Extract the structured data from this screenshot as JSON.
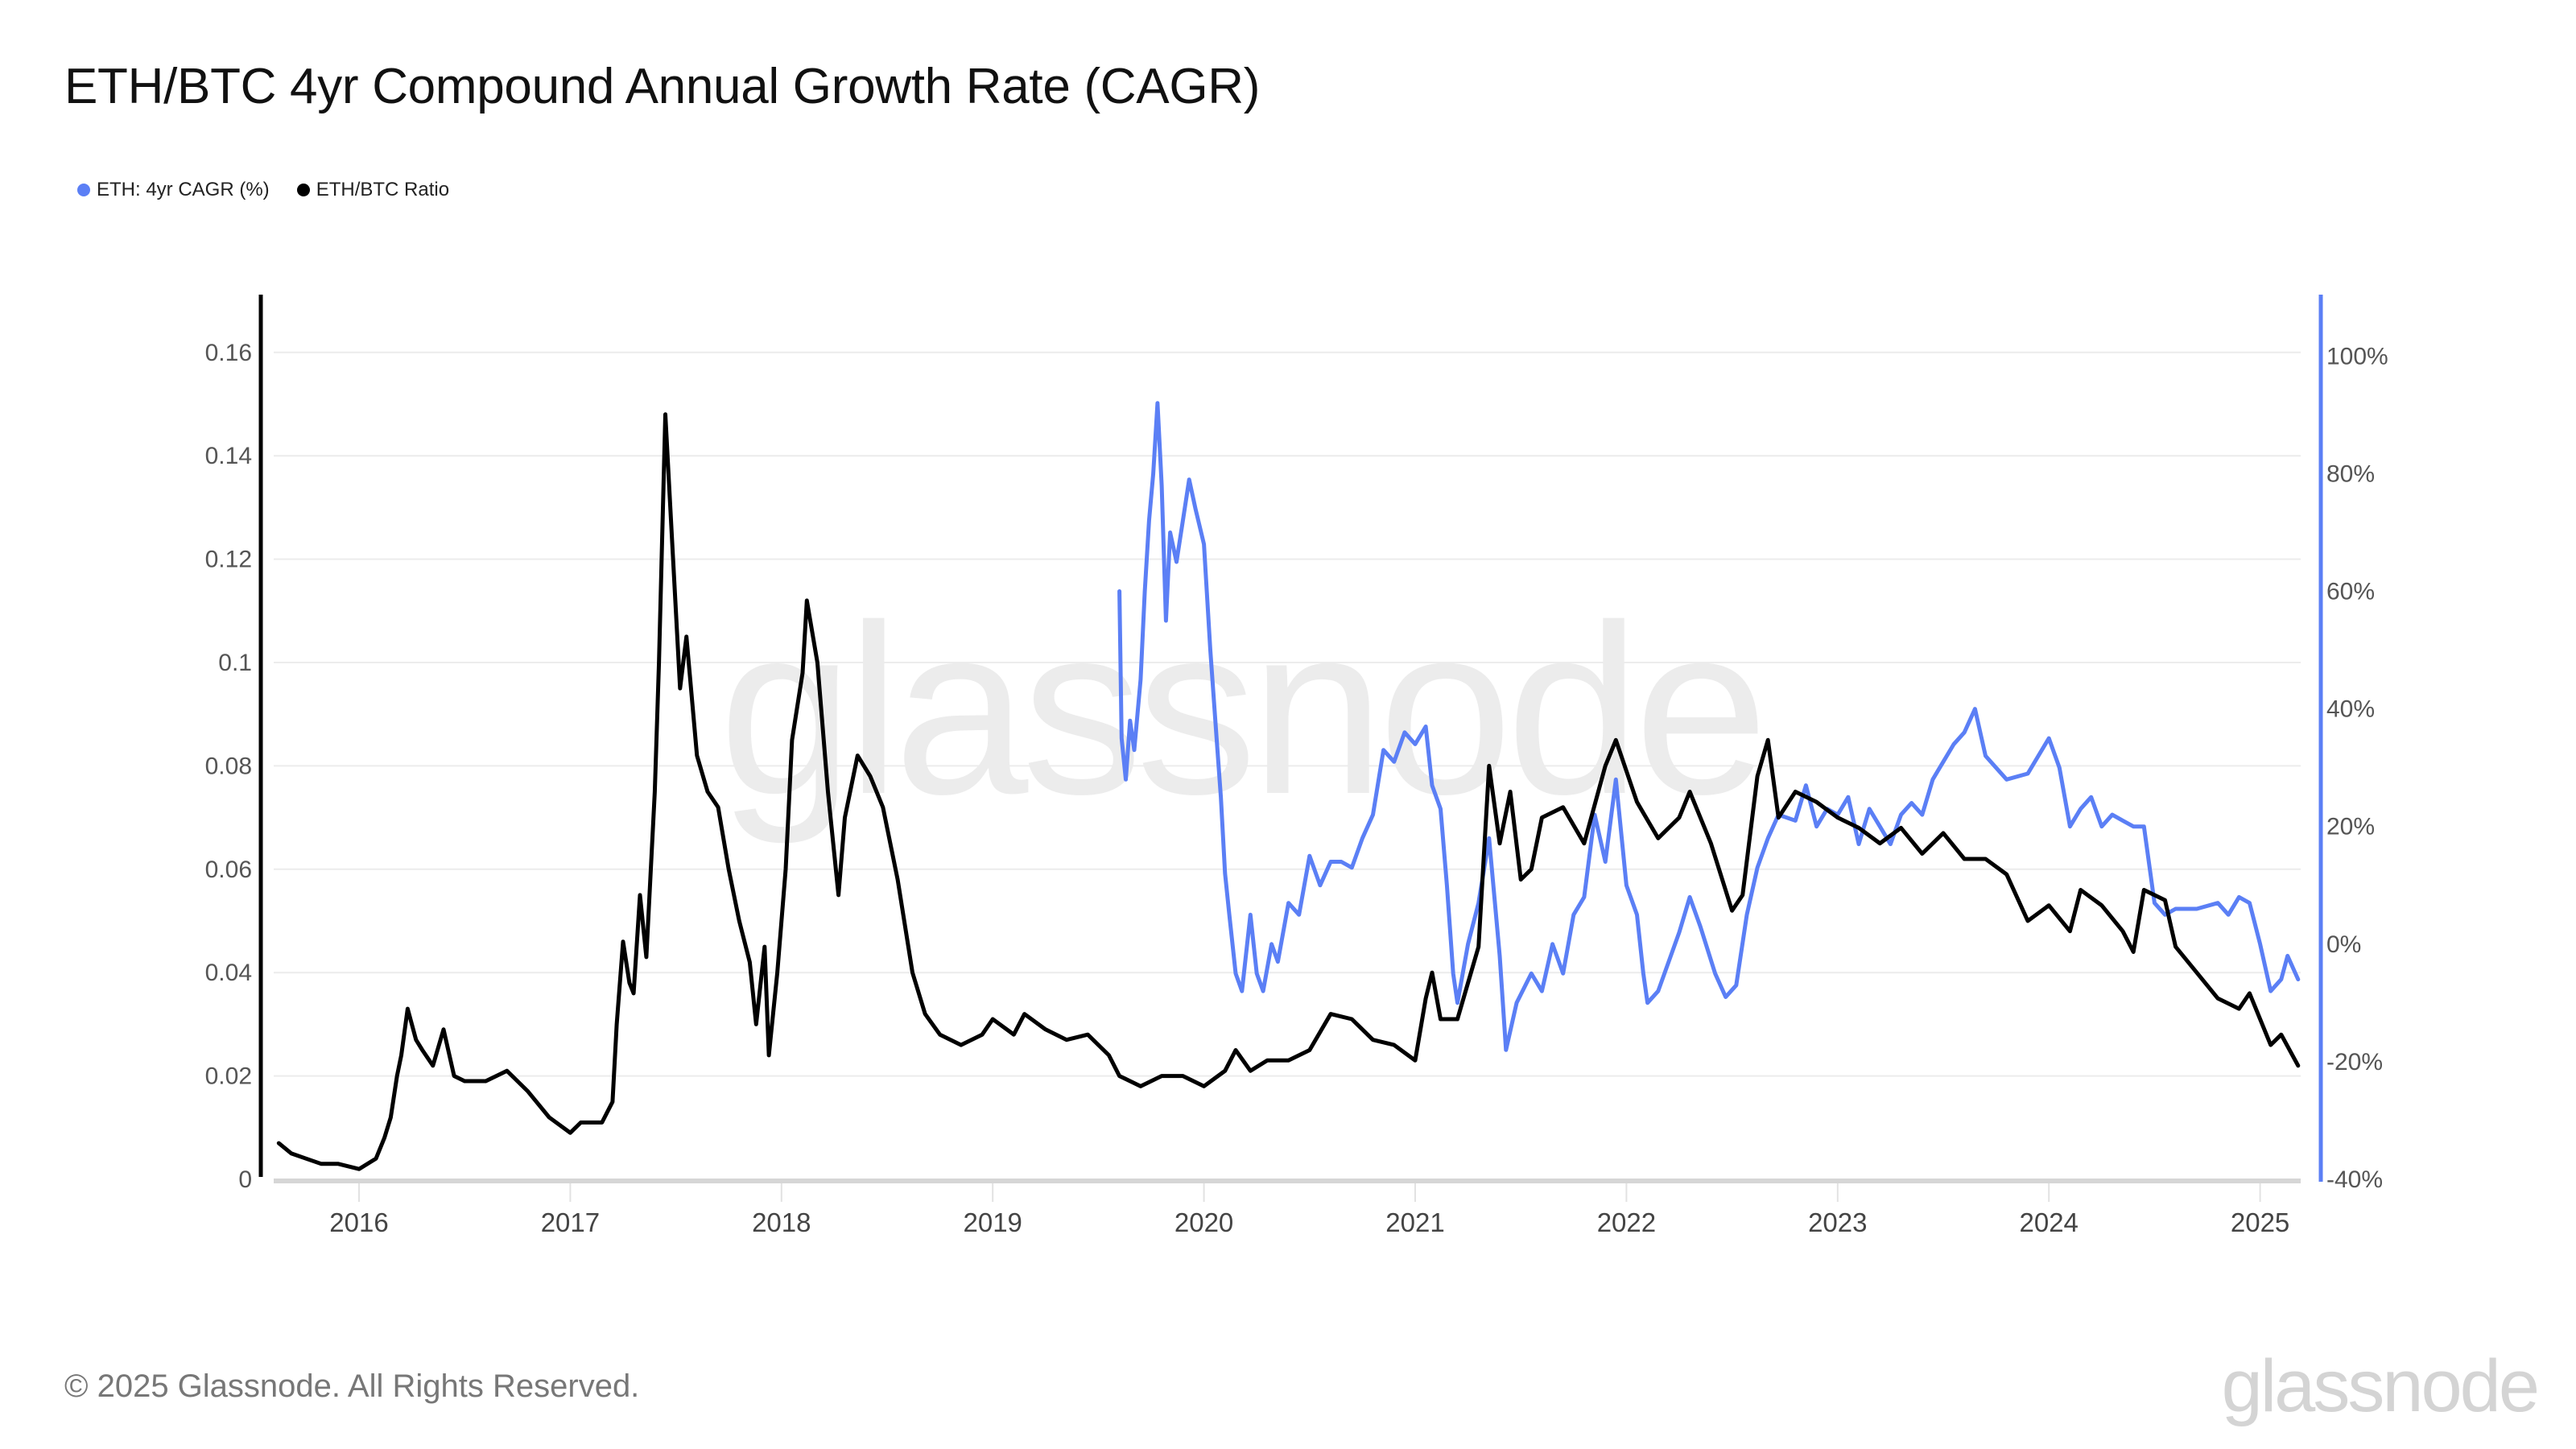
{
  "title": "ETH/BTC 4yr Compound Annual Growth Rate (CAGR)",
  "footer": {
    "copyright": "© 2025 Glassnode. All Rights Reserved.",
    "brand": "glassnode"
  },
  "watermark": "glassnode",
  "chart_data": {
    "type": "line",
    "title": "ETH/BTC 4yr Compound Annual Growth Rate (CAGR)",
    "xlabel": "",
    "ylabel_left": "",
    "ylabel_right": "",
    "x_ticks": [
      "2016",
      "2017",
      "2018",
      "2019",
      "2020",
      "2021",
      "2022",
      "2023",
      "2024",
      "2025"
    ],
    "x_range": [
      2015.6,
      2025.2
    ],
    "y_left": {
      "range": [
        0,
        0.17
      ],
      "ticks": [
        "0",
        "0.02",
        "0.04",
        "0.06",
        "0.08",
        "0.1",
        "0.12",
        "0.14",
        "0.16"
      ],
      "tick_values": [
        0,
        0.02,
        0.04,
        0.06,
        0.08,
        0.1,
        0.12,
        0.14,
        0.16
      ],
      "color": "#000000"
    },
    "y_right": {
      "range": [
        -40,
        110
      ],
      "ticks": [
        "-40%",
        "-20%",
        "0%",
        "20%",
        "40%",
        "60%",
        "80%",
        "100%"
      ],
      "tick_values": [
        -40,
        -20,
        0,
        20,
        40,
        60,
        80,
        100
      ],
      "color": "#5b7ff5"
    },
    "grid": true,
    "legend_placement": "top-left",
    "series": [
      {
        "name": "ETH: 4yr CAGR (%)",
        "axis": "right",
        "color": "#5b7ff5",
        "x": [
          2019.6,
          2019.61,
          2019.63,
          2019.65,
          2019.67,
          2019.7,
          2019.72,
          2019.74,
          2019.76,
          2019.78,
          2019.8,
          2019.82,
          2019.84,
          2019.87,
          2019.9,
          2019.93,
          2019.96,
          2020.0,
          2020.03,
          2020.06,
          2020.08,
          2020.1,
          2020.12,
          2020.15,
          2020.18,
          2020.22,
          2020.25,
          2020.28,
          2020.32,
          2020.35,
          2020.4,
          2020.45,
          2020.5,
          2020.55,
          2020.6,
          2020.65,
          2020.7,
          2020.75,
          2020.8,
          2020.85,
          2020.9,
          2020.95,
          2021.0,
          2021.05,
          2021.08,
          2021.12,
          2021.15,
          2021.18,
          2021.2,
          2021.25,
          2021.3,
          2021.35,
          2021.4,
          2021.43,
          2021.48,
          2021.55,
          2021.6,
          2021.65,
          2021.7,
          2021.75,
          2021.8,
          2021.85,
          2021.9,
          2021.95,
          2022.0,
          2022.05,
          2022.08,
          2022.1,
          2022.15,
          2022.2,
          2022.25,
          2022.3,
          2022.35,
          2022.42,
          2022.47,
          2022.52,
          2022.57,
          2022.62,
          2022.67,
          2022.72,
          2022.8,
          2022.85,
          2022.9,
          2022.95,
          2023.0,
          2023.05,
          2023.1,
          2023.15,
          2023.2,
          2023.25,
          2023.3,
          2023.35,
          2023.4,
          2023.45,
          2023.5,
          2023.55,
          2023.6,
          2023.65,
          2023.7,
          2023.75,
          2023.8,
          2023.9,
          2023.95,
          2024.0,
          2024.05,
          2024.1,
          2024.15,
          2024.2,
          2024.25,
          2024.3,
          2024.35,
          2024.4,
          2024.45,
          2024.5,
          2024.55,
          2024.6,
          2024.7,
          2024.8,
          2024.85,
          2024.9,
          2024.95,
          2025.0,
          2025.05,
          2025.1,
          2025.13,
          2025.18
        ],
        "values": [
          60,
          35,
          28,
          38,
          33,
          45,
          60,
          72,
          80,
          92,
          78,
          55,
          70,
          65,
          72,
          79,
          74,
          68,
          50,
          35,
          25,
          12,
          5,
          -5,
          -8,
          5,
          -5,
          -8,
          0,
          -3,
          7,
          5,
          15,
          10,
          14,
          14,
          13,
          18,
          22,
          33,
          31,
          36,
          34,
          37,
          27,
          23,
          10,
          -5,
          -10,
          0,
          7,
          18,
          -2,
          -18,
          -10,
          -5,
          -8,
          0,
          -5,
          5,
          8,
          22,
          14,
          28,
          10,
          5,
          -5,
          -10,
          -8,
          -3,
          2,
          8,
          3,
          -5,
          -9,
          -7,
          5,
          13,
          18,
          22,
          21,
          27,
          20,
          23,
          22,
          25,
          17,
          23,
          20,
          17,
          22,
          24,
          22,
          28,
          31,
          34,
          36,
          40,
          32,
          30,
          28,
          29,
          32,
          35,
          30,
          20,
          23,
          25,
          20,
          22,
          21,
          20,
          20,
          7,
          5,
          6,
          6,
          7,
          5,
          8,
          7,
          0,
          -8,
          -6,
          -2,
          -6
        ]
      },
      {
        "name": "ETH/BTC Ratio",
        "axis": "left",
        "color": "#000000",
        "x": [
          2015.62,
          2015.68,
          2015.75,
          2015.82,
          2015.9,
          2016.0,
          2016.08,
          2016.12,
          2016.15,
          2016.18,
          2016.2,
          2016.23,
          2016.27,
          2016.3,
          2016.35,
          2016.4,
          2016.45,
          2016.5,
          2016.6,
          2016.7,
          2016.8,
          2016.9,
          2017.0,
          2017.05,
          2017.15,
          2017.2,
          2017.22,
          2017.25,
          2017.28,
          2017.3,
          2017.33,
          2017.36,
          2017.4,
          2017.42,
          2017.45,
          2017.48,
          2017.52,
          2017.55,
          2017.6,
          2017.65,
          2017.7,
          2017.75,
          2017.8,
          2017.85,
          2017.88,
          2017.92,
          2017.94,
          2017.98,
          2018.02,
          2018.05,
          2018.1,
          2018.12,
          2018.17,
          2018.22,
          2018.27,
          2018.3,
          2018.36,
          2018.42,
          2018.48,
          2018.55,
          2018.62,
          2018.68,
          2018.75,
          2018.85,
          2018.95,
          2019.0,
          2019.1,
          2019.15,
          2019.25,
          2019.35,
          2019.45,
          2019.55,
          2019.6,
          2019.7,
          2019.8,
          2019.9,
          2020.0,
          2020.1,
          2020.15,
          2020.22,
          2020.3,
          2020.4,
          2020.5,
          2020.6,
          2020.7,
          2020.8,
          2020.9,
          2021.0,
          2021.05,
          2021.08,
          2021.12,
          2021.2,
          2021.25,
          2021.3,
          2021.35,
          2021.4,
          2021.45,
          2021.5,
          2021.55,
          2021.6,
          2021.7,
          2021.8,
          2021.9,
          2021.95,
          2022.05,
          2022.15,
          2022.25,
          2022.3,
          2022.4,
          2022.5,
          2022.55,
          2022.62,
          2022.67,
          2022.72,
          2022.8,
          2022.9,
          2023.0,
          2023.1,
          2023.2,
          2023.3,
          2023.4,
          2023.5,
          2023.6,
          2023.7,
          2023.8,
          2023.9,
          2024.0,
          2024.1,
          2024.15,
          2024.25,
          2024.35,
          2024.4,
          2024.45,
          2024.55,
          2024.6,
          2024.7,
          2024.8,
          2024.9,
          2024.95,
          2025.0,
          2025.05,
          2025.1,
          2025.18
        ],
        "values": [
          0.007,
          0.005,
          0.004,
          0.003,
          0.003,
          0.002,
          0.004,
          0.008,
          0.012,
          0.02,
          0.024,
          0.033,
          0.027,
          0.025,
          0.022,
          0.029,
          0.02,
          0.019,
          0.019,
          0.021,
          0.017,
          0.012,
          0.009,
          0.011,
          0.011,
          0.015,
          0.03,
          0.046,
          0.038,
          0.036,
          0.055,
          0.043,
          0.075,
          0.1,
          0.148,
          0.125,
          0.095,
          0.105,
          0.082,
          0.075,
          0.072,
          0.06,
          0.05,
          0.042,
          0.03,
          0.045,
          0.024,
          0.04,
          0.06,
          0.085,
          0.098,
          0.112,
          0.1,
          0.075,
          0.055,
          0.07,
          0.082,
          0.078,
          0.072,
          0.058,
          0.04,
          0.032,
          0.028,
          0.026,
          0.028,
          0.031,
          0.028,
          0.032,
          0.029,
          0.027,
          0.028,
          0.024,
          0.02,
          0.018,
          0.02,
          0.02,
          0.018,
          0.021,
          0.025,
          0.021,
          0.023,
          0.023,
          0.025,
          0.032,
          0.031,
          0.027,
          0.026,
          0.023,
          0.035,
          0.04,
          0.031,
          0.031,
          0.038,
          0.045,
          0.08,
          0.065,
          0.075,
          0.058,
          0.06,
          0.07,
          0.072,
          0.065,
          0.08,
          0.085,
          0.073,
          0.066,
          0.07,
          0.075,
          0.065,
          0.052,
          0.055,
          0.078,
          0.085,
          0.07,
          0.075,
          0.073,
          0.07,
          0.068,
          0.065,
          0.068,
          0.063,
          0.067,
          0.062,
          0.062,
          0.059,
          0.05,
          0.053,
          0.048,
          0.056,
          0.053,
          0.048,
          0.044,
          0.056,
          0.054,
          0.045,
          0.04,
          0.035,
          0.033,
          0.036,
          0.031,
          0.026,
          0.028,
          0.022
        ]
      }
    ]
  },
  "legend": [
    {
      "label": "ETH: 4yr CAGR (%)",
      "color": "#5b7ff5"
    },
    {
      "label": "ETH/BTC Ratio",
      "color": "#000000"
    }
  ]
}
